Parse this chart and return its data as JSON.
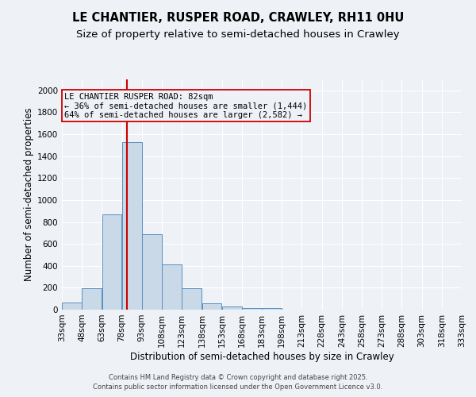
{
  "title": "LE CHANTIER, RUSPER ROAD, CRAWLEY, RH11 0HU",
  "subtitle": "Size of property relative to semi-detached houses in Crawley",
  "xlabel": "Distribution of semi-detached houses by size in Crawley",
  "ylabel": "Number of semi-detached properties",
  "footer_line1": "Contains HM Land Registry data © Crown copyright and database right 2025.",
  "footer_line2": "Contains public sector information licensed under the Open Government Licence v3.0.",
  "property_label": "LE CHANTIER RUSPER ROAD: 82sqm",
  "pct_smaller": 36,
  "pct_larger": 64,
  "count_smaller": 1444,
  "count_larger": 2582,
  "bin_edges": [
    33,
    48,
    63,
    78,
    93,
    108,
    123,
    138,
    153,
    168,
    183,
    198,
    213,
    228,
    243,
    258,
    273,
    288,
    303,
    318,
    333
  ],
  "bin_counts": [
    65,
    195,
    870,
    1530,
    690,
    415,
    195,
    60,
    30,
    15,
    15,
    0,
    0,
    0,
    0,
    0,
    0,
    0,
    0,
    0
  ],
  "bar_color": "#c9d9e8",
  "bar_edge_color": "#5a8fc0",
  "vline_color": "#cc0000",
  "vline_x": 82,
  "annotation_box_edge_color": "#cc0000",
  "ylim": [
    0,
    2100
  ],
  "yticks": [
    0,
    200,
    400,
    600,
    800,
    1000,
    1200,
    1400,
    1600,
    1800,
    2000
  ],
  "background_color": "#eef2f7",
  "grid_color": "#ffffff",
  "title_fontsize": 10.5,
  "subtitle_fontsize": 9.5,
  "axis_fontsize": 8.5,
  "tick_fontsize": 7.5,
  "annotation_fontsize": 7.5,
  "footer_fontsize": 6.0
}
